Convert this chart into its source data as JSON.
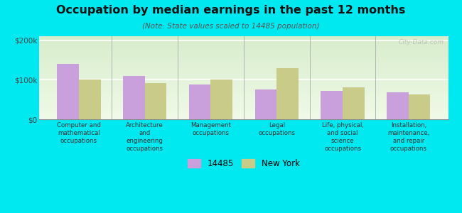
{
  "title": "Occupation by median earnings in the past 12 months",
  "subtitle": "(Note: State values scaled to 14485 population)",
  "categories": [
    "Computer and\nmathematical\noccupations",
    "Architecture\nand\nengineering\noccupations",
    "Management\noccupations",
    "Legal\noccupations",
    "Life, physical,\nand social\nscience\noccupations",
    "Installation,\nmaintenance,\nand repair\noccupations"
  ],
  "values_14485": [
    140000,
    110000,
    88000,
    75000,
    72000,
    68000
  ],
  "values_ny": [
    100000,
    92000,
    100000,
    130000,
    80000,
    63000
  ],
  "color_14485": "#c9a0dc",
  "color_ny": "#c8cc88",
  "background_color": "#00e8f0",
  "ylim": [
    0,
    210000
  ],
  "yticks": [
    0,
    100000,
    200000
  ],
  "ytick_labels": [
    "$0",
    "$100k",
    "$200k"
  ],
  "legend_14485": "14485",
  "legend_ny": "New York",
  "watermark": "City-Data.com"
}
